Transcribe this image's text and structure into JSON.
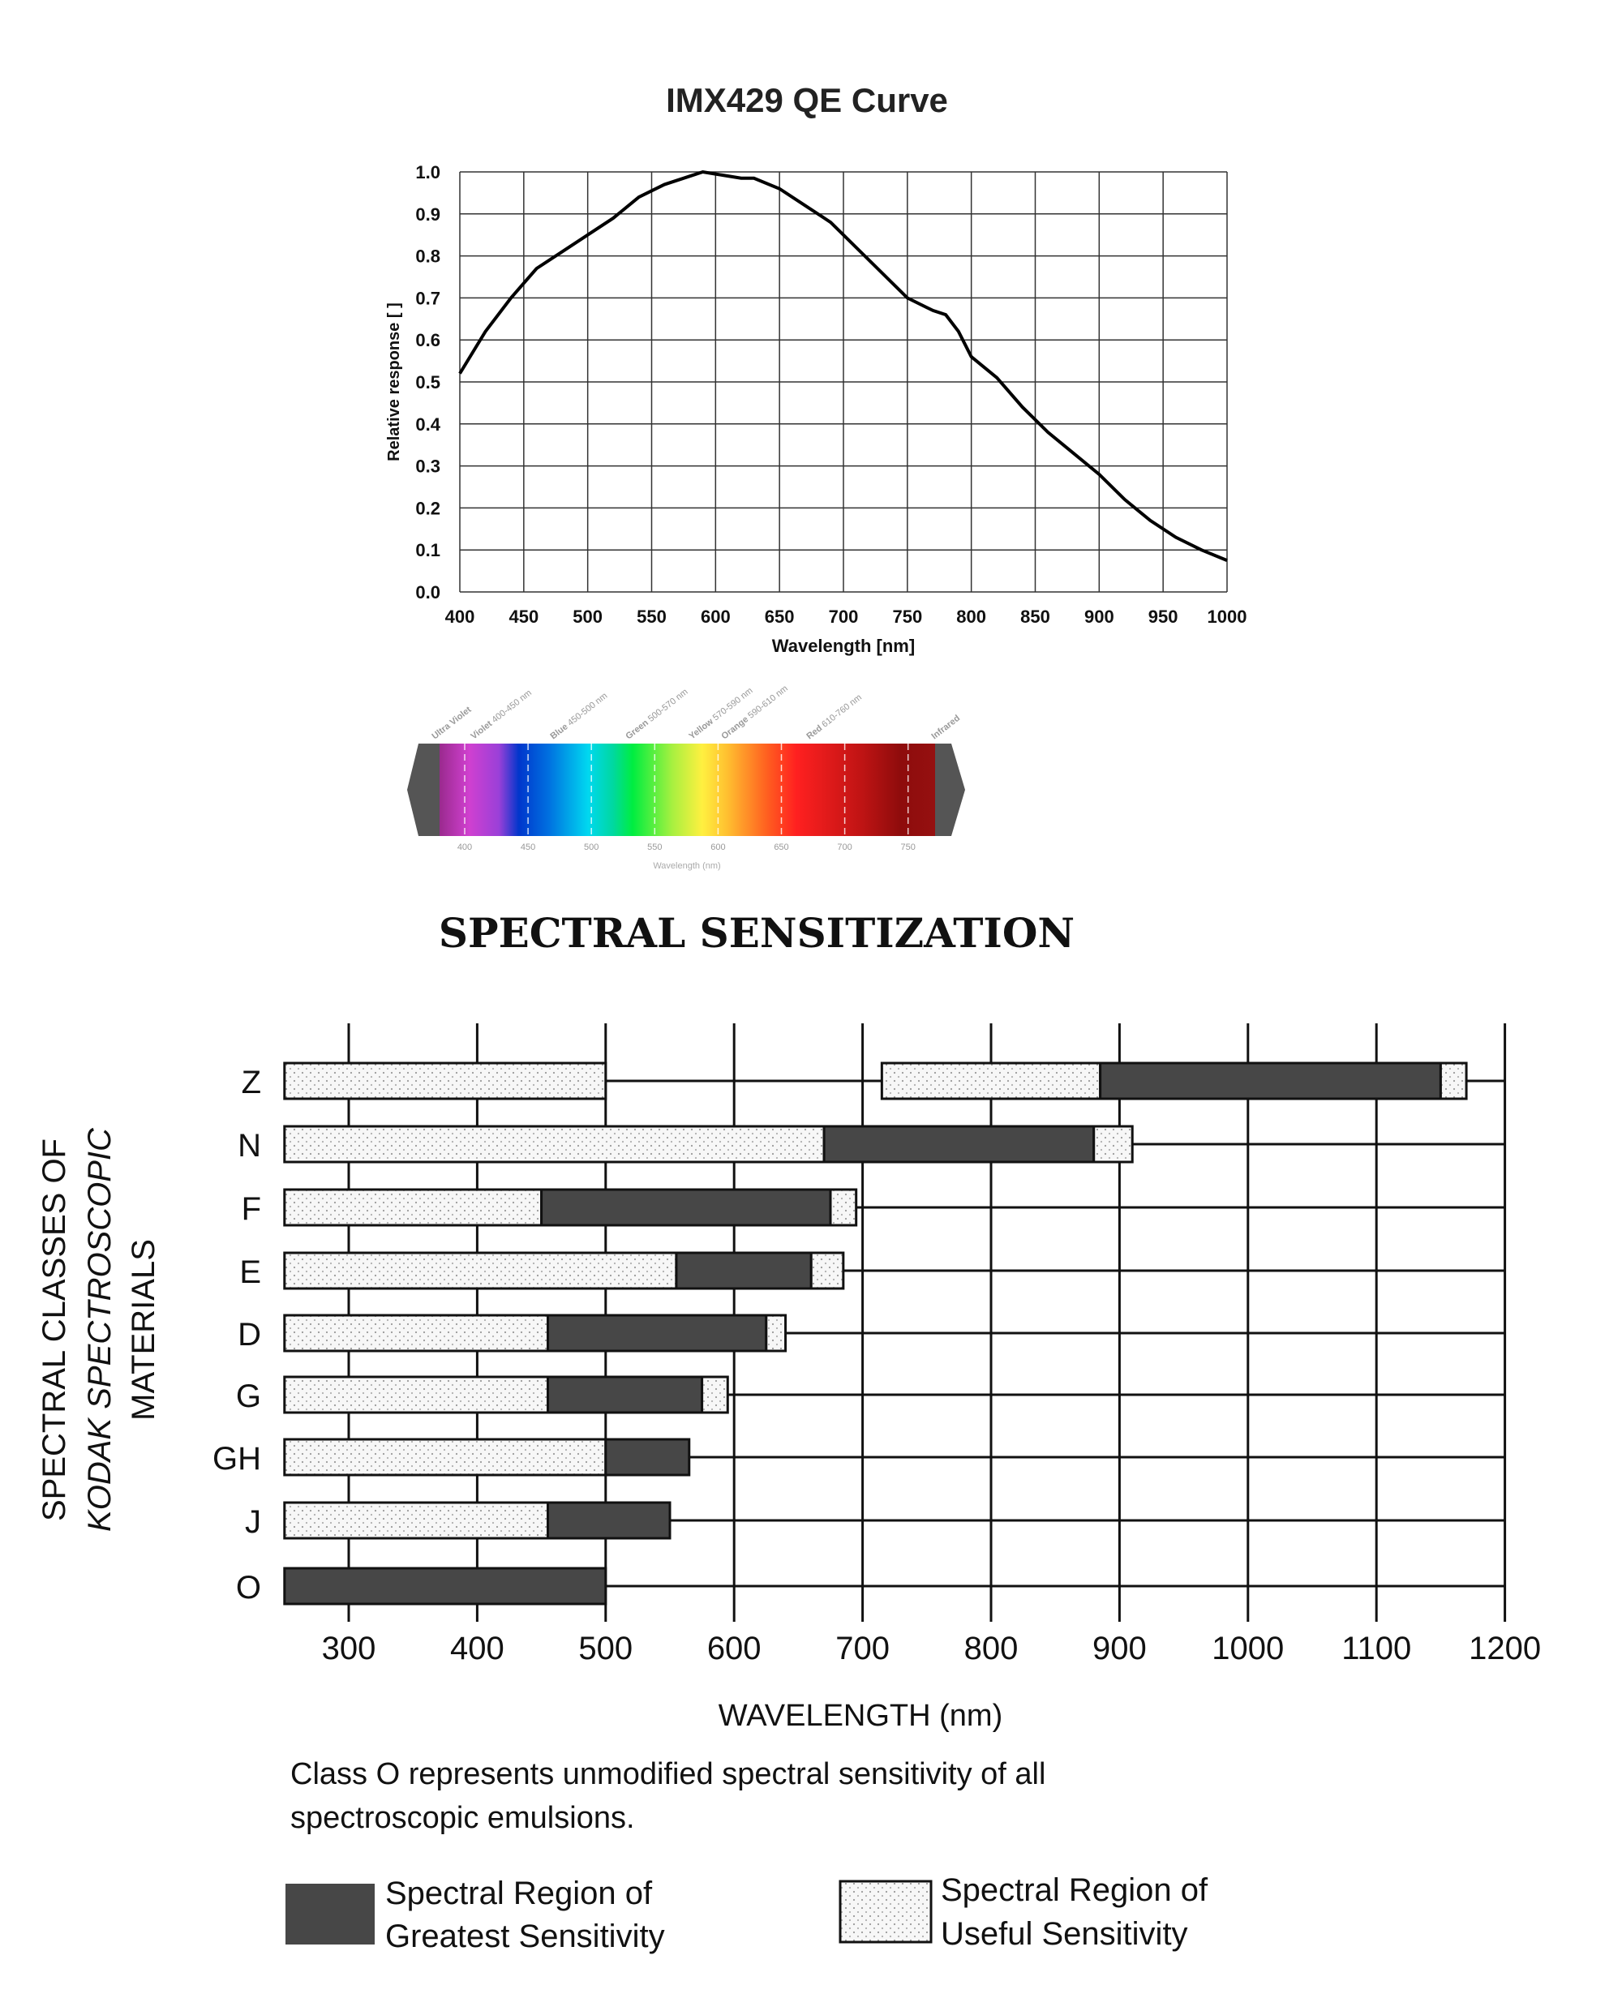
{
  "chart_data": [
    {
      "type": "line",
      "title": "IMX429 QE Curve",
      "xlabel": "Wavelength [nm]",
      "ylabel": "Relative response [ ]",
      "xlim": [
        400,
        1000
      ],
      "ylim": [
        0,
        1.0
      ],
      "grid": true,
      "xticks": [
        "400",
        "450",
        "500",
        "550",
        "600",
        "650",
        "700",
        "750",
        "800",
        "850",
        "900",
        "950",
        "1000"
      ],
      "yticks": [
        "0.0",
        "0.1",
        "0.2",
        "0.3",
        "0.4",
        "0.5",
        "0.6",
        "0.7",
        "0.8",
        "0.9",
        "1.0"
      ],
      "series": [
        {
          "name": "QE",
          "x": [
            400,
            420,
            440,
            460,
            480,
            500,
            520,
            540,
            560,
            580,
            590,
            600,
            620,
            630,
            650,
            670,
            690,
            710,
            730,
            750,
            770,
            780,
            790,
            800,
            820,
            840,
            860,
            880,
            900,
            920,
            940,
            960,
            980,
            1000
          ],
          "y": [
            0.52,
            0.62,
            0.7,
            0.77,
            0.81,
            0.85,
            0.89,
            0.94,
            0.97,
            0.99,
            1.0,
            0.995,
            0.985,
            0.985,
            0.96,
            0.92,
            0.88,
            0.82,
            0.76,
            0.7,
            0.67,
            0.66,
            0.62,
            0.56,
            0.51,
            0.44,
            0.38,
            0.33,
            0.28,
            0.22,
            0.17,
            0.13,
            0.1,
            0.075
          ]
        }
      ]
    },
    {
      "type": "spectrum",
      "xlabel": "Wavelength (nm)",
      "xticks": [
        "400",
        "450",
        "500",
        "550",
        "600",
        "650",
        "700",
        "750"
      ],
      "bands": [
        {
          "name": "Ultra Violet",
          "range": ""
        },
        {
          "name": "Violet",
          "range": "400-450 nm"
        },
        {
          "name": "Blue",
          "range": "450-500 nm"
        },
        {
          "name": "Green",
          "range": "500-570 nm"
        },
        {
          "name": "Yellow",
          "range": "570-590 nm"
        },
        {
          "name": "Orange",
          "range": "590-610 nm"
        },
        {
          "name": "Red",
          "range": "610-760 nm"
        },
        {
          "name": "Infrared",
          "range": ""
        }
      ]
    },
    {
      "type": "bar",
      "subtype": "range-bars",
      "title": "SPECTRAL SENSITIZATION",
      "xlabel": "WAVELENGTH (nm)",
      "ylabel_lines": [
        "SPECTRAL CLASSES OF",
        "KODAK SPECTROSCOPIC",
        "MATERIALS"
      ],
      "ylabel_italic_word": "KODAK",
      "xlim": [
        250,
        1200
      ],
      "xticks": [
        "300",
        "400",
        "500",
        "600",
        "700",
        "800",
        "900",
        "1000",
        "1100",
        "1200"
      ],
      "categories": [
        "Z",
        "N",
        "F",
        "E",
        "D",
        "G",
        "GH",
        "J",
        "O"
      ],
      "rows": [
        {
          "cls": "Z",
          "segments": [
            {
              "kind": "useful",
              "from": 250,
              "to": 500
            },
            {
              "kind": "useful",
              "from": 715,
              "to": 885
            },
            {
              "kind": "greatest",
              "from": 885,
              "to": 1150
            },
            {
              "kind": "useful",
              "from": 1150,
              "to": 1170
            }
          ]
        },
        {
          "cls": "N",
          "segments": [
            {
              "kind": "useful",
              "from": 250,
              "to": 670
            },
            {
              "kind": "greatest",
              "from": 670,
              "to": 880
            },
            {
              "kind": "useful",
              "from": 880,
              "to": 910
            }
          ]
        },
        {
          "cls": "F",
          "segments": [
            {
              "kind": "useful",
              "from": 250,
              "to": 450
            },
            {
              "kind": "greatest",
              "from": 450,
              "to": 675
            },
            {
              "kind": "useful",
              "from": 675,
              "to": 695
            }
          ]
        },
        {
          "cls": "E",
          "segments": [
            {
              "kind": "useful",
              "from": 250,
              "to": 555
            },
            {
              "kind": "greatest",
              "from": 555,
              "to": 660
            },
            {
              "kind": "useful",
              "from": 660,
              "to": 685
            }
          ]
        },
        {
          "cls": "D",
          "segments": [
            {
              "kind": "useful",
              "from": 250,
              "to": 455
            },
            {
              "kind": "greatest",
              "from": 455,
              "to": 625
            },
            {
              "kind": "useful",
              "from": 625,
              "to": 640
            }
          ]
        },
        {
          "cls": "G",
          "segments": [
            {
              "kind": "useful",
              "from": 250,
              "to": 455
            },
            {
              "kind": "greatest",
              "from": 455,
              "to": 575
            },
            {
              "kind": "useful",
              "from": 575,
              "to": 595
            }
          ]
        },
        {
          "cls": "GH",
          "segments": [
            {
              "kind": "useful",
              "from": 250,
              "to": 500
            },
            {
              "kind": "greatest",
              "from": 500,
              "to": 565
            }
          ]
        },
        {
          "cls": "J",
          "segments": [
            {
              "kind": "useful",
              "from": 250,
              "to": 455
            },
            {
              "kind": "greatest",
              "from": 455,
              "to": 550
            }
          ]
        },
        {
          "cls": "O",
          "segments": [
            {
              "kind": "greatest",
              "from": 250,
              "to": 500
            }
          ]
        }
      ],
      "note_lines": [
        "Class O represents unmodified spectral sensitivity of all",
        "spectroscopic emulsions."
      ],
      "legend": [
        {
          "kind": "greatest",
          "lines": [
            "Spectral Region of",
            "Greatest Sensitivity"
          ]
        },
        {
          "kind": "useful",
          "lines": [
            "Spectral Region of",
            "Useful Sensitivity"
          ]
        }
      ],
      "colors": {
        "greatest": "#474747",
        "useful": "#f6f6f6"
      }
    }
  ]
}
